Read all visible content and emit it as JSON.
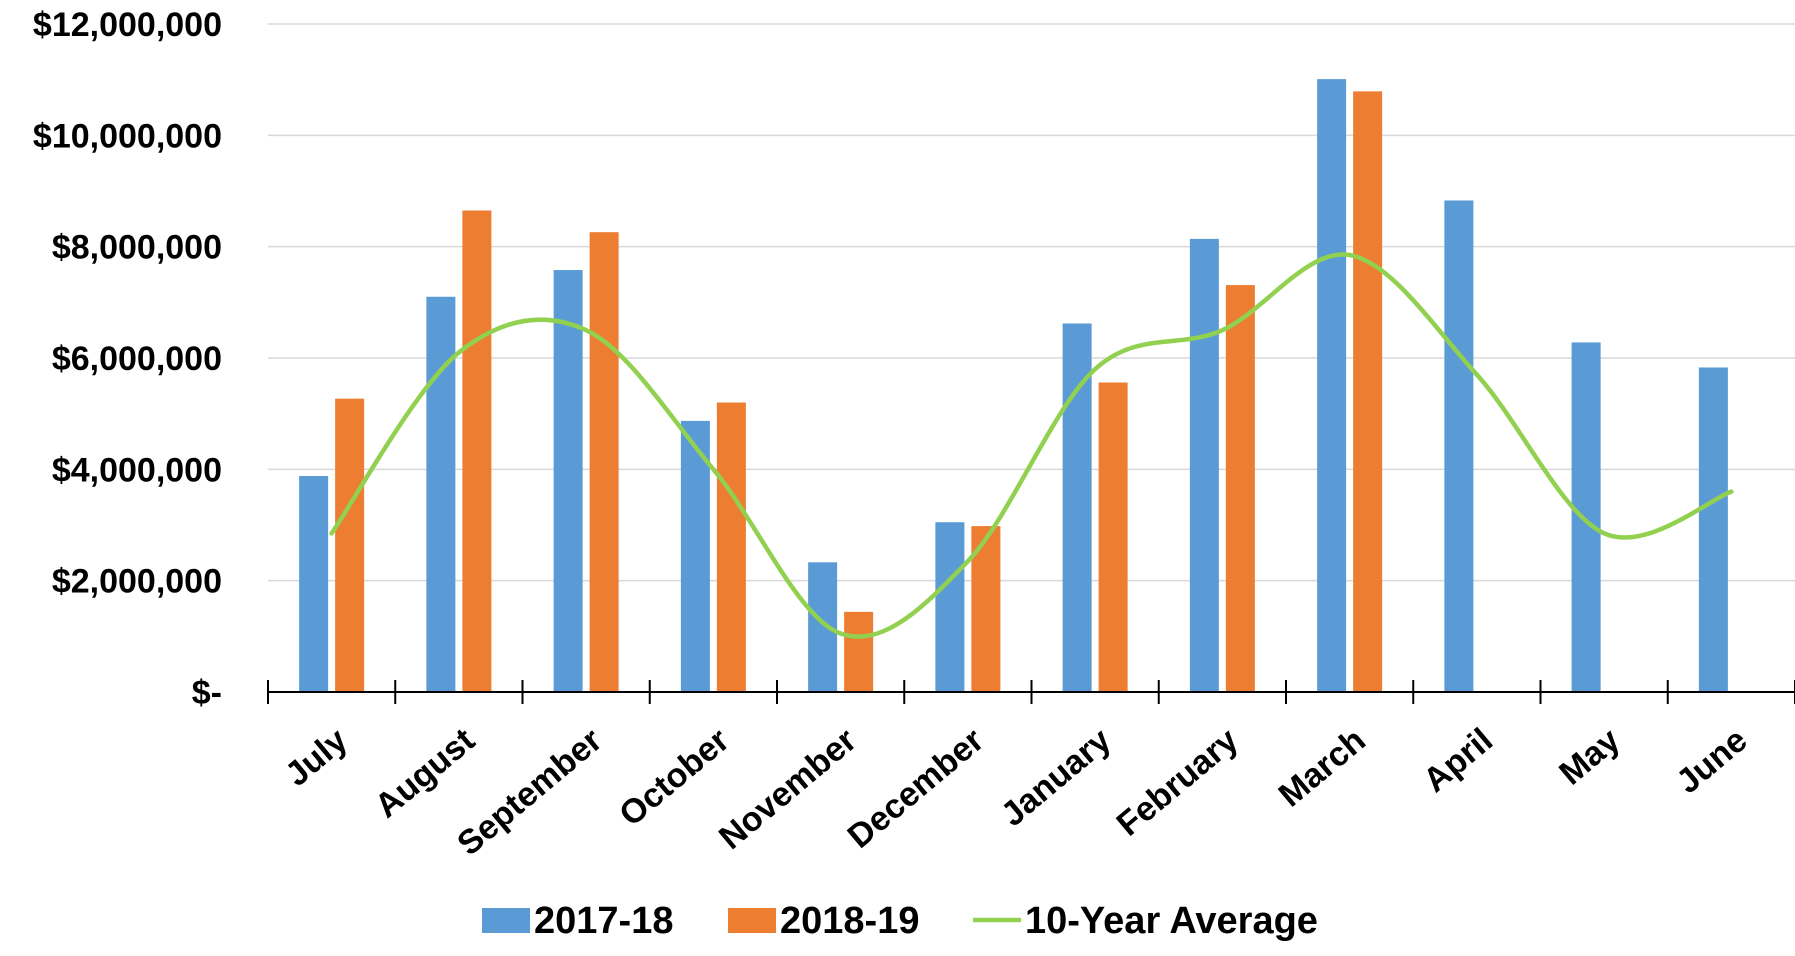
{
  "chart_data": {
    "type": "bar",
    "categories": [
      "July",
      "August",
      "September",
      "October",
      "November",
      "December",
      "January",
      "February",
      "March",
      "April",
      "May",
      "June"
    ],
    "series": [
      {
        "name": "2017-18",
        "kind": "bar",
        "color": "#5B9BD5",
        "values": [
          3880000,
          7100000,
          7580000,
          4870000,
          2330000,
          3050000,
          6620000,
          8140000,
          11010000,
          8830000,
          6280000,
          5830000
        ]
      },
      {
        "name": "2018-19",
        "kind": "bar",
        "color": "#ED7D31",
        "values": [
          5270000,
          8650000,
          8260000,
          5200000,
          1440000,
          2980000,
          5560000,
          7310000,
          10790000,
          null,
          null,
          null
        ]
      },
      {
        "name": "10-Year Average",
        "kind": "line",
        "color": "#92D050",
        "values": [
          2850000,
          6100000,
          6500000,
          4000000,
          1050000,
          2350000,
          5800000,
          6500000,
          7850000,
          5700000,
          2850000,
          3600000
        ]
      }
    ],
    "y_ticks": [
      {
        "value": 0,
        "label": "$-"
      },
      {
        "value": 2000000,
        "label": "$2,000,000"
      },
      {
        "value": 4000000,
        "label": "$4,000,000"
      },
      {
        "value": 6000000,
        "label": "$6,000,000"
      },
      {
        "value": 8000000,
        "label": "$8,000,000"
      },
      {
        "value": 10000000,
        "label": "$10,000,000"
      },
      {
        "value": 12000000,
        "label": "$12,000,000"
      }
    ],
    "ylim": [
      0,
      12000000
    ],
    "grid": true,
    "legend_position": "bottom",
    "title": "",
    "xlabel": "",
    "ylabel": ""
  }
}
